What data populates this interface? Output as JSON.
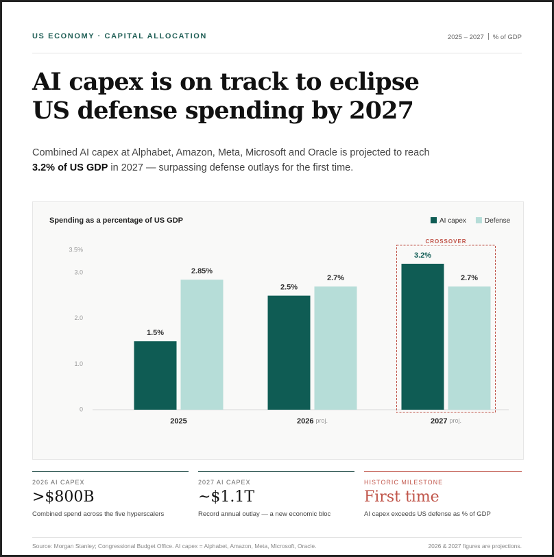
{
  "header": {
    "kicker": "US ECONOMY · CAPITAL ALLOCATION",
    "period": "2025 – 2027",
    "unit": "% of GDP"
  },
  "title": [
    "AI capex is on track to eclipse",
    "US defense spending by 2027"
  ],
  "subtitle": [
    "Combined AI capex at Alphabet, Amazon, Meta, Microsoft and Oracle is projected to reach ",
    "3.2% of US GDP",
    " in 2027 — surpassing defense outlays for the first time."
  ],
  "chart_data": {
    "type": "bar",
    "title": "Spending as a percentage of US GDP",
    "categories": [
      "2025",
      "2026",
      "2027"
    ],
    "category_notes": [
      null,
      "proj.",
      "proj."
    ],
    "series": [
      {
        "name": "AI capex",
        "color": "#0f5c54",
        "values": [
          1.5,
          2.5,
          3.2
        ],
        "value_labels": [
          "1.5%",
          "2.5%",
          "3.2%"
        ]
      },
      {
        "name": "Defense",
        "color": "#b6ddd8",
        "values": [
          2.85,
          2.7,
          2.7
        ],
        "value_labels": [
          "2.85%",
          "2.7%",
          "2.7%"
        ]
      }
    ],
    "ylim": [
      0,
      3.5
    ],
    "yticks": [
      0,
      {
        "value": 1,
        "label": "1.0"
      },
      {
        "value": 2,
        "label": "2.0"
      },
      {
        "value": 3,
        "label": "3.0"
      },
      {
        "value": 3.5,
        "label": "3.5%"
      }
    ],
    "grid": false,
    "legend": "top-right",
    "annotation": "CROSSOVER",
    "annotation_color": "#c0554a"
  },
  "stats": [
    {
      "label": "2026 AI CAPEX",
      "value": ">$800B",
      "note": "Combined spend across the five hyperscalers"
    },
    {
      "label": "2027 AI CAPEX",
      "value": "~$1.1T",
      "note": "Record annual outlay — a new economic bloc"
    },
    {
      "label": "HISTORIC MILESTONE",
      "value": "First time",
      "note": "AI capex exceeds US defense as % of GDP"
    }
  ],
  "footer": {
    "source": "Source: Morgan Stanley; Congressional Budget Office. AI capex = Alphabet, Amazon, Meta, Microsoft, Oracle.",
    "note": "2026 & 2027 figures are projections."
  }
}
